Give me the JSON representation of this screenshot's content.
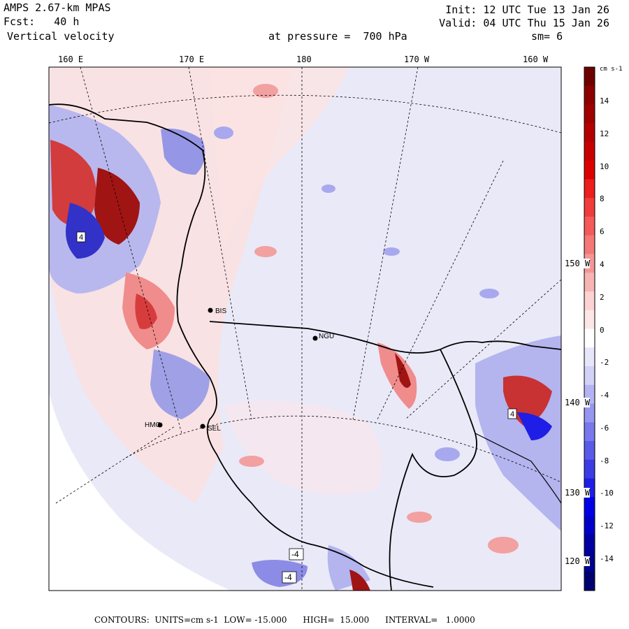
{
  "header": {
    "model": "AMPS 2.67-km MPAS",
    "forecast": "Fcst:   40 h",
    "field": "Vertical velocity",
    "init": "Init: 12 UTC Tue 13 Jan 26",
    "valid": "Valid: 04 UTC Thu 15 Jan 26",
    "level": "at pressure =  700 hPa",
    "smoothing": "sm= 6"
  },
  "map": {
    "lon_labels": [
      "160 E",
      "170 E",
      "180",
      "170 W",
      "160 W"
    ],
    "lat_labels": [
      "150 W",
      "140 W",
      "130 W",
      "120 W"
    ],
    "stations": [
      "BIS",
      "NGU",
      "SEL",
      "HMC"
    ],
    "box_labels": [
      "4",
      "4",
      "-4",
      "-4"
    ],
    "colors": {
      "positive_light": "#fde3e3",
      "positive_mid": "#f08c8c",
      "positive_dark": "#c81e1e",
      "positive_deep": "#780000",
      "negative_light": "#e8e8f8",
      "negative_mid": "#8c8ce6",
      "negative_dark": "#1e1ee6",
      "negative_deep": "#00007d",
      "land_line": "#000000"
    }
  },
  "colorbar": {
    "units": "cm s-1",
    "ticks": [
      "14",
      "12",
      "10",
      "8",
      "6",
      "4",
      "2",
      "0",
      "-2",
      "-4",
      "-6",
      "-8",
      "-10",
      "-12",
      "-14"
    ],
    "colors": [
      "#6e0000",
      "#8c0000",
      "#a00000",
      "#b40000",
      "#c80000",
      "#dc0000",
      "#ec1e1e",
      "#f03c3c",
      "#f45a5a",
      "#f47878",
      "#f49696",
      "#f8b4b4",
      "#fcd2d2",
      "#fde6e6",
      "#ffffff",
      "#e6e6fa",
      "#d2d2f8",
      "#b4b4f4",
      "#9696f0",
      "#7878ec",
      "#5a5ae8",
      "#3c3ce4",
      "#1e1ee6",
      "#0000e6",
      "#0000c8",
      "#0000a0",
      "#00008c",
      "#00006e"
    ]
  },
  "footer": {
    "text": "CONTOURS:  UNITS=cm s-1  LOW= -15.000      HIGH=  15.000      INTERVAL=   1.0000"
  }
}
